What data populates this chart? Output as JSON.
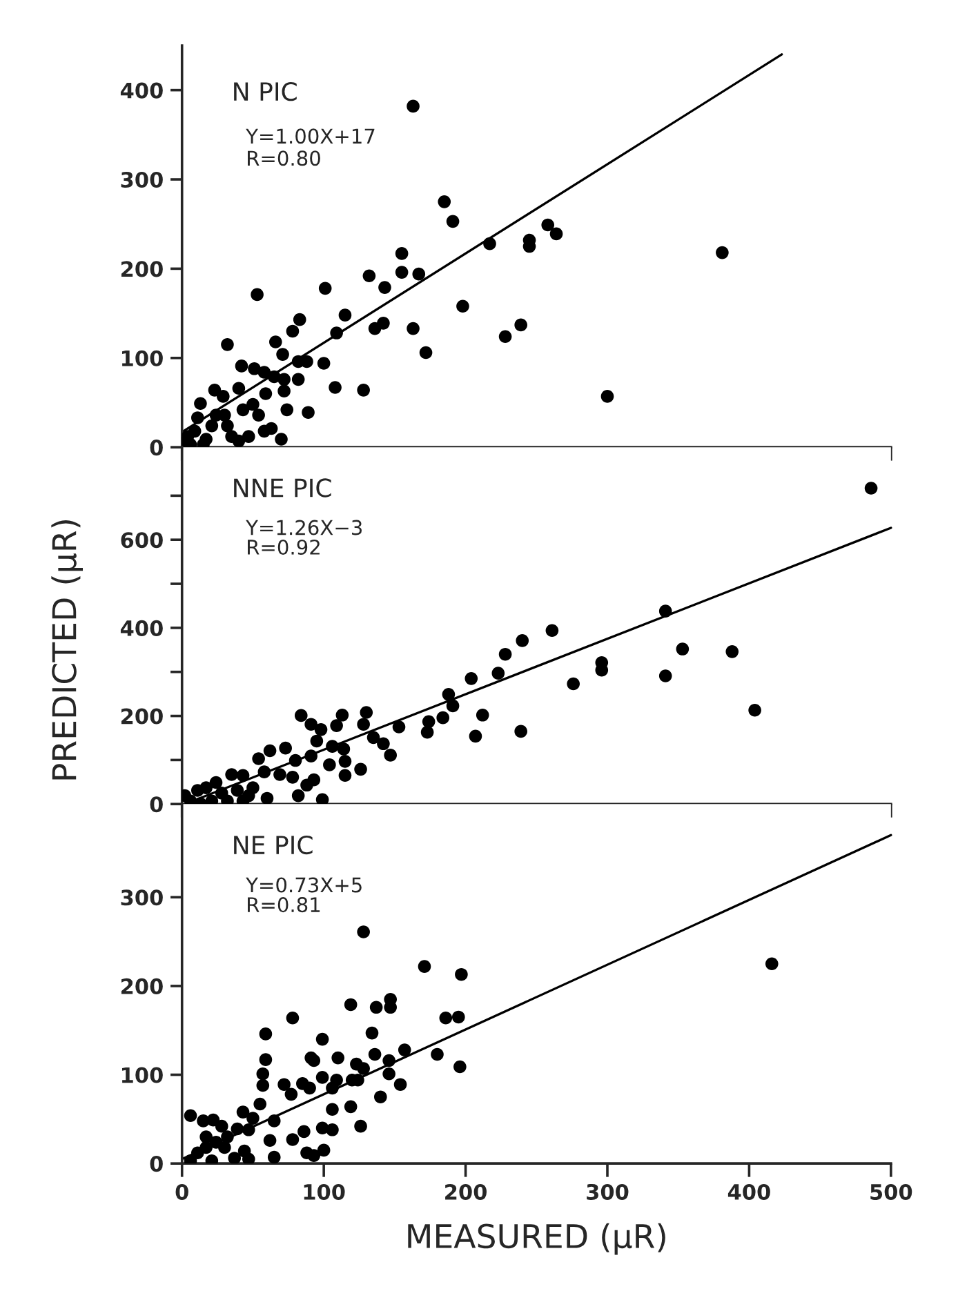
{
  "chart_data": [
    {
      "type": "scatter",
      "xlim": [
        0,
        500
      ],
      "ylim": [
        0,
        450
      ],
      "xticks": [
        0,
        100,
        200,
        300,
        400,
        500
      ],
      "yticks": [
        0,
        100,
        200,
        300,
        400
      ],
      "tick_labels": "y",
      "annotations": [
        "N PIC",
        "Y=1.00X+17",
        "R=0.80"
      ],
      "series": [
        {
          "marker": "circle",
          "color": "#000000",
          "x": [
            163,
            185,
            191,
            217,
            245,
            245,
            258,
            264,
            381,
            300,
            198,
            239,
            228,
            172,
            163,
            155,
            155,
            167,
            132,
            143,
            136,
            142,
            101,
            115,
            109,
            128,
            108,
            100,
            53,
            32,
            83,
            78,
            66,
            71,
            89,
            88,
            82,
            42,
            51,
            58,
            65,
            72,
            82,
            59,
            72,
            74,
            40,
            23,
            29,
            13,
            11,
            30,
            43,
            54,
            63,
            70,
            40,
            4,
            2,
            9,
            21,
            17,
            32,
            24,
            50,
            58,
            47,
            35,
            6,
            15
          ],
          "values": [
            382,
            275,
            253,
            228,
            232,
            225,
            249,
            239,
            218,
            57,
            158,
            137,
            124,
            106,
            133,
            217,
            196,
            194,
            192,
            179,
            133,
            139,
            178,
            148,
            128,
            64,
            67,
            94,
            171,
            115,
            143,
            130,
            118,
            104,
            39,
            96,
            96,
            91,
            88,
            84,
            79,
            76,
            76,
            60,
            63,
            42,
            66,
            64,
            57,
            49,
            33,
            36,
            42,
            36,
            21,
            9,
            7,
            12,
            5,
            18,
            24,
            9,
            24,
            36,
            48,
            18,
            12,
            12,
            3,
            3
          ]
        },
        {
          "type": "line",
          "marker": "none",
          "color": "#000000",
          "x": [
            0,
            423
          ],
          "values": [
            17,
            440
          ]
        }
      ]
    },
    {
      "type": "scatter",
      "xlim": [
        0,
        500
      ],
      "ylim": [
        0,
        810
      ],
      "xticks": [
        0,
        100,
        200,
        300,
        400,
        500
      ],
      "yticks": [
        0,
        {
          "value": 100,
          "label": null
        },
        200,
        {
          "value": 300,
          "label": null
        },
        400,
        {
          "value": 500,
          "label": null
        },
        600,
        {
          "value": 700,
          "label": null
        }
      ],
      "tick_labels": "y",
      "ylabel": "PREDICTED (μR)",
      "annotations": [
        "NNE PIC",
        "Y=1.26X−3",
        "R=0.92"
      ],
      "series": [
        {
          "marker": "circle",
          "color": "#000000",
          "x": [
            486,
            341,
            353,
            388,
            341,
            404,
            296,
            296,
            276,
            261,
            240,
            228,
            223,
            204,
            239,
            212,
            207,
            188,
            191,
            184,
            174,
            173,
            153,
            130,
            128,
            135,
            142,
            147,
            113,
            109,
            84,
            91,
            98,
            95,
            106,
            114,
            104,
            115,
            115,
            126,
            91,
            80,
            78,
            93,
            88,
            82,
            99,
            73,
            62,
            54,
            58,
            69,
            35,
            43,
            24,
            17,
            11,
            2,
            6,
            28,
            39,
            47,
            50,
            60,
            32,
            43,
            21,
            13
          ],
          "values": [
            717,
            438,
            352,
            346,
            291,
            213,
            321,
            304,
            273,
            394,
            371,
            340,
            297,
            285,
            165,
            202,
            154,
            249,
            223,
            196,
            187,
            163,
            175,
            208,
            181,
            151,
            137,
            111,
            202,
            178,
            201,
            181,
            169,
            143,
            131,
            125,
            89,
            97,
            65,
            79,
            109,
            99,
            61,
            55,
            43,
            19,
            10,
            127,
            121,
            103,
            73,
            67,
            67,
            65,
            49,
            37,
            31,
            19,
            7,
            25,
            31,
            19,
            37,
            13,
            7,
            7,
            7,
            1
          ]
        },
        {
          "type": "line",
          "marker": "none",
          "color": "#000000",
          "x": [
            2,
            500
          ],
          "values": [
            0,
            627
          ]
        }
      ]
    },
    {
      "type": "scatter",
      "xlim": [
        0,
        500
      ],
      "ylim": [
        0,
        405
      ],
      "xticks": [
        0,
        100,
        200,
        300,
        400,
        500
      ],
      "yticks": [
        0,
        100,
        200,
        300
      ],
      "xlabel": "MEASURED (μR)",
      "annotations": [
        "NE PIC",
        "Y=0.73X+5",
        "R=0.81"
      ],
      "series": [
        {
          "marker": "circle",
          "color": "#000000",
          "x": [
            416,
            128,
            171,
            197,
            186,
            195,
            196,
            180,
            157,
            154,
            146,
            146,
            119,
            137,
            147,
            147,
            134,
            136,
            140,
            123,
            128,
            120,
            124,
            119,
            126,
            110,
            106,
            109,
            99,
            106,
            99,
            106,
            100,
            99,
            91,
            93,
            78,
            59,
            59,
            57,
            57,
            72,
            85,
            77,
            90,
            55,
            78,
            86,
            88,
            93,
            65,
            62,
            65,
            43,
            50,
            47,
            39,
            44,
            47,
            6,
            15,
            22,
            28,
            17,
            24,
            32,
            11,
            6,
            21,
            30,
            37,
            17
          ],
          "values": [
            225,
            261,
            222,
            213,
            164,
            165,
            109,
            123,
            128,
            89,
            116,
            101,
            179,
            176,
            185,
            176,
            147,
            123,
            75,
            112,
            107,
            94,
            94,
            64,
            42,
            119,
            85,
            94,
            97,
            61,
            40,
            38,
            15,
            140,
            119,
            116,
            164,
            146,
            117,
            101,
            88,
            89,
            90,
            78,
            85,
            67,
            27,
            36,
            12,
            9,
            7,
            26,
            48,
            58,
            51,
            38,
            39,
            14,
            5,
            54,
            48,
            49,
            42,
            30,
            24,
            30,
            12,
            3,
            3,
            18,
            6,
            18
          ]
        },
        {
          "type": "line",
          "marker": "none",
          "color": "#000000",
          "x": [
            0,
            500
          ],
          "values": [
            5,
            370
          ]
        }
      ]
    }
  ]
}
